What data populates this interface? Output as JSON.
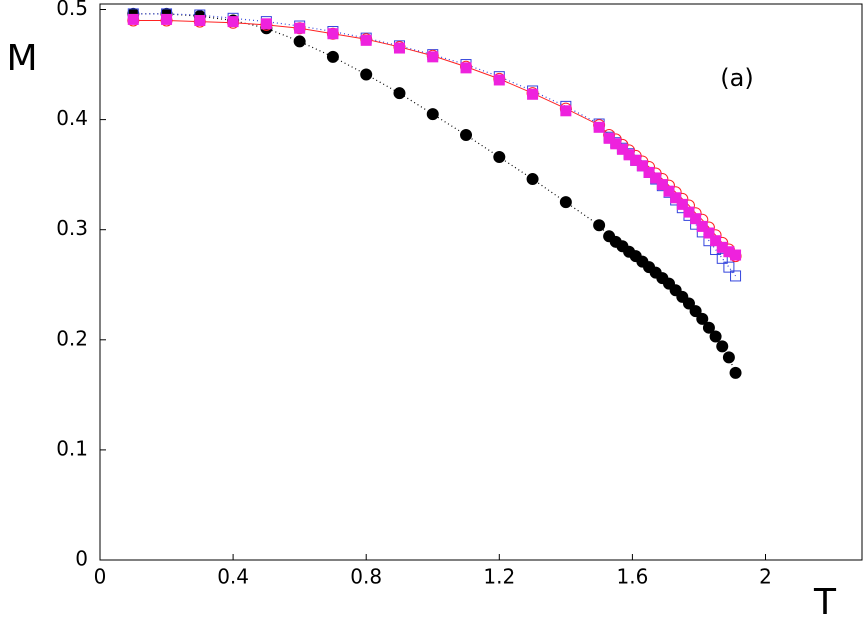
{
  "chart_data": {
    "type": "scatter",
    "xlabel": "T",
    "ylabel": "M",
    "annotation": "(a)",
    "xlim": [
      0,
      2.29
    ],
    "ylim": [
      0,
      0.505
    ],
    "xticks": [
      0,
      0.4,
      0.8,
      1.2,
      1.6,
      2
    ],
    "yticks": [
      0,
      0.1,
      0.2,
      0.3,
      0.4,
      0.5
    ],
    "x": [
      0.1,
      0.2,
      0.3,
      0.4,
      0.5,
      0.6,
      0.7,
      0.8,
      0.9,
      1.0,
      1.1,
      1.2,
      1.3,
      1.4,
      1.5,
      1.53,
      1.55,
      1.57,
      1.59,
      1.61,
      1.63,
      1.65,
      1.67,
      1.69,
      1.71,
      1.73,
      1.75,
      1.77,
      1.79,
      1.81,
      1.83,
      1.85,
      1.87,
      1.89,
      1.91
    ],
    "series": [
      {
        "color": "#000000",
        "marker": "circle",
        "filled": true,
        "line": "dotted",
        "values": [
          0.496,
          0.496,
          0.494,
          0.49,
          0.483,
          0.471,
          0.457,
          0.441,
          0.424,
          0.405,
          0.386,
          0.366,
          0.346,
          0.325,
          0.304,
          0.294,
          0.289,
          0.285,
          0.28,
          0.276,
          0.271,
          0.266,
          0.261,
          0.256,
          0.251,
          0.245,
          0.239,
          0.233,
          0.226,
          0.219,
          0.211,
          0.203,
          0.194,
          0.184,
          0.17
        ]
      },
      {
        "color": "#3344dd",
        "marker": "square",
        "filled": false,
        "line": "dotted",
        "values": [
          0.496,
          0.496,
          0.495,
          0.492,
          0.489,
          0.485,
          0.48,
          0.474,
          0.467,
          0.459,
          0.45,
          0.439,
          0.426,
          0.412,
          0.396,
          0.384,
          0.379,
          0.374,
          0.369,
          0.363,
          0.358,
          0.352,
          0.346,
          0.34,
          0.334,
          0.327,
          0.32,
          0.313,
          0.305,
          0.298,
          0.29,
          0.282,
          0.274,
          0.266,
          0.258
        ]
      },
      {
        "color": "#ff2222",
        "marker": "circle",
        "filled": false,
        "line": "solid",
        "values": [
          0.49,
          0.49,
          0.489,
          0.488,
          0.486,
          0.483,
          0.478,
          0.473,
          0.466,
          0.458,
          0.448,
          0.437,
          0.424,
          0.41,
          0.395,
          0.386,
          0.382,
          0.377,
          0.372,
          0.367,
          0.362,
          0.357,
          0.351,
          0.346,
          0.34,
          0.334,
          0.328,
          0.322,
          0.315,
          0.309,
          0.302,
          0.295,
          0.288,
          0.282,
          0.276
        ]
      },
      {
        "color": "#ee22dd",
        "marker": "square",
        "filled": true,
        "line": "none",
        "values": [
          0.491,
          0.491,
          0.49,
          0.489,
          0.487,
          0.483,
          0.478,
          0.472,
          0.465,
          0.457,
          0.447,
          0.436,
          0.423,
          0.408,
          0.393,
          0.383,
          0.378,
          0.373,
          0.368,
          0.363,
          0.358,
          0.352,
          0.347,
          0.341,
          0.335,
          0.329,
          0.323,
          0.316,
          0.31,
          0.303,
          0.297,
          0.29,
          0.284,
          0.28,
          0.277
        ]
      }
    ]
  }
}
